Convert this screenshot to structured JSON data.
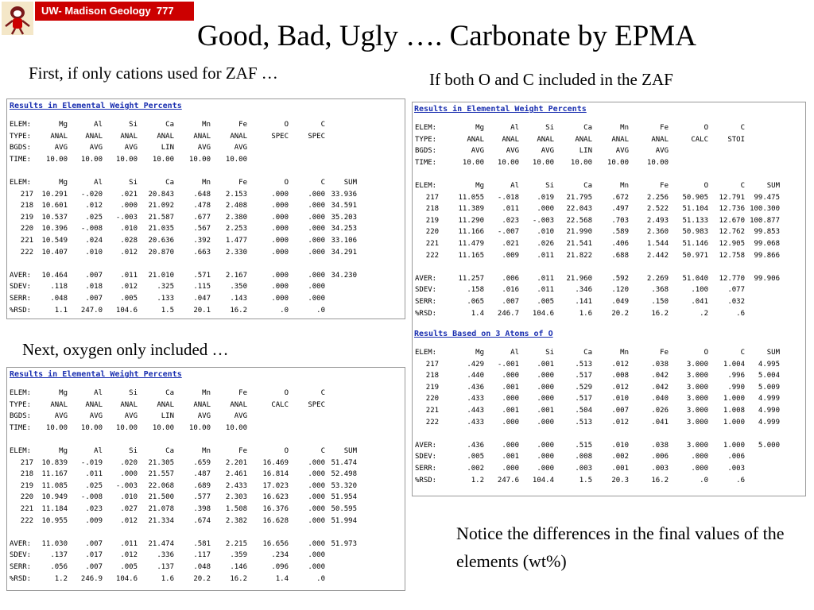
{
  "header": {
    "course_label": "UW- Madison Geology  777",
    "title": "Good, Bad, Ugly …. Carbonate by EPMA"
  },
  "captions": {
    "cations_only": "First, if only cations used for ZAF …",
    "oxygen_only": "Next, oxygen only included …",
    "both_o_c": "If both O and C included in the ZAF",
    "notice": "Notice the differences in the final values of the elements (wt%)"
  },
  "tables": {
    "cations_only": {
      "title": "Results in Elemental Weight Percents",
      "header_rows": [
        [
          "ELEM:",
          "Mg",
          "Al",
          "Si",
          "Ca",
          "Mn",
          "Fe",
          "O",
          "C",
          ""
        ],
        [
          "TYPE:",
          "ANAL",
          "ANAL",
          "ANAL",
          "ANAL",
          "ANAL",
          "ANAL",
          "SPEC",
          "SPEC",
          ""
        ],
        [
          "BGDS:",
          "AVG",
          "AVG",
          "AVG",
          "LIN",
          "AVG",
          "AVG",
          "",
          "",
          ""
        ],
        [
          "TIME:",
          "10.00",
          "10.00",
          "10.00",
          "10.00",
          "10.00",
          "10.00",
          "",
          "",
          ""
        ]
      ],
      "data_header": [
        "ELEM:",
        "Mg",
        "Al",
        "Si",
        "Ca",
        "Mn",
        "Fe",
        "O",
        "C",
        "SUM"
      ],
      "data_rows": [
        [
          "217",
          "10.291",
          "-.020",
          ".021",
          "20.843",
          ".648",
          "2.153",
          ".000",
          ".000",
          "33.936"
        ],
        [
          "218",
          "10.601",
          ".012",
          ".000",
          "21.092",
          ".478",
          "2.408",
          ".000",
          ".000",
          "34.591"
        ],
        [
          "219",
          "10.537",
          ".025",
          "-.003",
          "21.587",
          ".677",
          "2.380",
          ".000",
          ".000",
          "35.203"
        ],
        [
          "220",
          "10.396",
          "-.008",
          ".010",
          "21.035",
          ".567",
          "2.253",
          ".000",
          ".000",
          "34.253"
        ],
        [
          "221",
          "10.549",
          ".024",
          ".028",
          "20.636",
          ".392",
          "1.477",
          ".000",
          ".000",
          "33.106"
        ],
        [
          "222",
          "10.407",
          ".010",
          ".012",
          "20.870",
          ".663",
          "2.330",
          ".000",
          ".000",
          "34.291"
        ]
      ],
      "stat_rows": [
        [
          "AVER:",
          "10.464",
          ".007",
          ".011",
          "21.010",
          ".571",
          "2.167",
          ".000",
          ".000",
          "34.230"
        ],
        [
          "SDEV:",
          ".118",
          ".018",
          ".012",
          ".325",
          ".115",
          ".350",
          ".000",
          ".000",
          ""
        ],
        [
          "SERR:",
          ".048",
          ".007",
          ".005",
          ".133",
          ".047",
          ".143",
          ".000",
          ".000",
          ""
        ],
        [
          "%RSD:",
          "1.1",
          "247.0",
          "104.6",
          "1.5",
          "20.1",
          "16.2",
          ".0",
          ".0",
          ""
        ]
      ]
    },
    "oxygen_only": {
      "title": "Results in Elemental Weight Percents",
      "header_rows": [
        [
          "ELEM:",
          "Mg",
          "Al",
          "Si",
          "Ca",
          "Mn",
          "Fe",
          "O",
          "C",
          ""
        ],
        [
          "TYPE:",
          "ANAL",
          "ANAL",
          "ANAL",
          "ANAL",
          "ANAL",
          "ANAL",
          "CALC",
          "SPEC",
          ""
        ],
        [
          "BGDS:",
          "AVG",
          "AVG",
          "AVG",
          "LIN",
          "AVG",
          "AVG",
          "",
          "",
          ""
        ],
        [
          "TIME:",
          "10.00",
          "10.00",
          "10.00",
          "10.00",
          "10.00",
          "10.00",
          "",
          "",
          ""
        ]
      ],
      "data_header": [
        "ELEM:",
        "Mg",
        "Al",
        "Si",
        "Ca",
        "Mn",
        "Fe",
        "O",
        "C",
        "SUM"
      ],
      "data_rows": [
        [
          "217",
          "10.839",
          "-.019",
          ".020",
          "21.305",
          ".659",
          "2.201",
          "16.469",
          ".000",
          "51.474"
        ],
        [
          "218",
          "11.167",
          ".011",
          ".000",
          "21.557",
          ".487",
          "2.461",
          "16.814",
          ".000",
          "52.498"
        ],
        [
          "219",
          "11.085",
          ".025",
          "-.003",
          "22.068",
          ".689",
          "2.433",
          "17.023",
          ".000",
          "53.320"
        ],
        [
          "220",
          "10.949",
          "-.008",
          ".010",
          "21.500",
          ".577",
          "2.303",
          "16.623",
          ".000",
          "51.954"
        ],
        [
          "221",
          "11.184",
          ".023",
          ".027",
          "21.078",
          ".398",
          "1.508",
          "16.376",
          ".000",
          "50.595"
        ],
        [
          "222",
          "10.955",
          ".009",
          ".012",
          "21.334",
          ".674",
          "2.382",
          "16.628",
          ".000",
          "51.994"
        ]
      ],
      "stat_rows": [
        [
          "AVER:",
          "11.030",
          ".007",
          ".011",
          "21.474",
          ".581",
          "2.215",
          "16.656",
          ".000",
          "51.973"
        ],
        [
          "SDEV:",
          ".137",
          ".017",
          ".012",
          ".336",
          ".117",
          ".359",
          ".234",
          ".000",
          ""
        ],
        [
          "SERR:",
          ".056",
          ".007",
          ".005",
          ".137",
          ".048",
          ".146",
          ".096",
          ".000",
          ""
        ],
        [
          "%RSD:",
          "1.2",
          "246.9",
          "104.6",
          "1.6",
          "20.2",
          "16.2",
          "1.4",
          ".0",
          ""
        ]
      ]
    },
    "both_o_c": {
      "title": "Results in Elemental Weight Percents",
      "header_rows": [
        [
          "ELEM:",
          "Mg",
          "Al",
          "Si",
          "Ca",
          "Mn",
          "Fe",
          "O",
          "C",
          ""
        ],
        [
          "TYPE:",
          "ANAL",
          "ANAL",
          "ANAL",
          "ANAL",
          "ANAL",
          "ANAL",
          "CALC",
          "STOI",
          ""
        ],
        [
          "BGDS:",
          "AVG",
          "AVG",
          "AVG",
          "LIN",
          "AVG",
          "AVG",
          "",
          "",
          ""
        ],
        [
          "TIME:",
          "10.00",
          "10.00",
          "10.00",
          "10.00",
          "10.00",
          "10.00",
          "",
          "",
          ""
        ]
      ],
      "data_header": [
        "ELEM:",
        "Mg",
        "Al",
        "Si",
        "Ca",
        "Mn",
        "Fe",
        "O",
        "C",
        "SUM"
      ],
      "data_rows": [
        [
          "217",
          "11.055",
          "-.018",
          ".019",
          "21.795",
          ".672",
          "2.256",
          "50.905",
          "12.791",
          "99.475"
        ],
        [
          "218",
          "11.389",
          ".011",
          ".000",
          "22.043",
          ".497",
          "2.522",
          "51.104",
          "12.736",
          "100.300"
        ],
        [
          "219",
          "11.290",
          ".023",
          "-.003",
          "22.568",
          ".703",
          "2.493",
          "51.133",
          "12.670",
          "100.877"
        ],
        [
          "220",
          "11.166",
          "-.007",
          ".010",
          "21.990",
          ".589",
          "2.360",
          "50.983",
          "12.762",
          "99.853"
        ],
        [
          "221",
          "11.479",
          ".021",
          ".026",
          "21.541",
          ".406",
          "1.544",
          "51.146",
          "12.905",
          "99.068"
        ],
        [
          "222",
          "11.165",
          ".009",
          ".011",
          "21.822",
          ".688",
          "2.442",
          "50.971",
          "12.758",
          "99.866"
        ]
      ],
      "stat_rows": [
        [
          "AVER:",
          "11.257",
          ".006",
          ".011",
          "21.960",
          ".592",
          "2.269",
          "51.040",
          "12.770",
          "99.906"
        ],
        [
          "SDEV:",
          ".158",
          ".016",
          ".011",
          ".346",
          ".120",
          ".368",
          ".100",
          ".077",
          ""
        ],
        [
          "SERR:",
          ".065",
          ".007",
          ".005",
          ".141",
          ".049",
          ".150",
          ".041",
          ".032",
          ""
        ],
        [
          "%RSD:",
          "1.4",
          "246.7",
          "104.6",
          "1.6",
          "20.2",
          "16.2",
          ".2",
          ".6",
          ""
        ]
      ]
    },
    "atoms": {
      "title": "Results Based on 3 Atoms of O",
      "data_header": [
        "ELEM:",
        "Mg",
        "Al",
        "Si",
        "Ca",
        "Mn",
        "Fe",
        "O",
        "C",
        "SUM"
      ],
      "data_rows": [
        [
          "217",
          ".429",
          "-.001",
          ".001",
          ".513",
          ".012",
          ".038",
          "3.000",
          "1.004",
          "4.995"
        ],
        [
          "218",
          ".440",
          ".000",
          ".000",
          ".517",
          ".008",
          ".042",
          "3.000",
          ".996",
          "5.004"
        ],
        [
          "219",
          ".436",
          ".001",
          ".000",
          ".529",
          ".012",
          ".042",
          "3.000",
          ".990",
          "5.009"
        ],
        [
          "220",
          ".433",
          ".000",
          ".000",
          ".517",
          ".010",
          ".040",
          "3.000",
          "1.000",
          "4.999"
        ],
        [
          "221",
          ".443",
          ".001",
          ".001",
          ".504",
          ".007",
          ".026",
          "3.000",
          "1.008",
          "4.990"
        ],
        [
          "222",
          ".433",
          ".000",
          ".000",
          ".513",
          ".012",
          ".041",
          "3.000",
          "1.000",
          "4.999"
        ]
      ],
      "stat_rows": [
        [
          "AVER:",
          ".436",
          ".000",
          ".000",
          ".515",
          ".010",
          ".038",
          "3.000",
          "1.000",
          "5.000"
        ],
        [
          "SDEV:",
          ".005",
          ".001",
          ".000",
          ".008",
          ".002",
          ".006",
          ".000",
          ".006",
          ""
        ],
        [
          "SERR:",
          ".002",
          ".000",
          ".000",
          ".003",
          ".001",
          ".003",
          ".000",
          ".003",
          ""
        ],
        [
          "%RSD:",
          "1.2",
          "247.6",
          "104.4",
          "1.5",
          "20.3",
          "16.2",
          ".0",
          ".6",
          ""
        ]
      ]
    }
  }
}
